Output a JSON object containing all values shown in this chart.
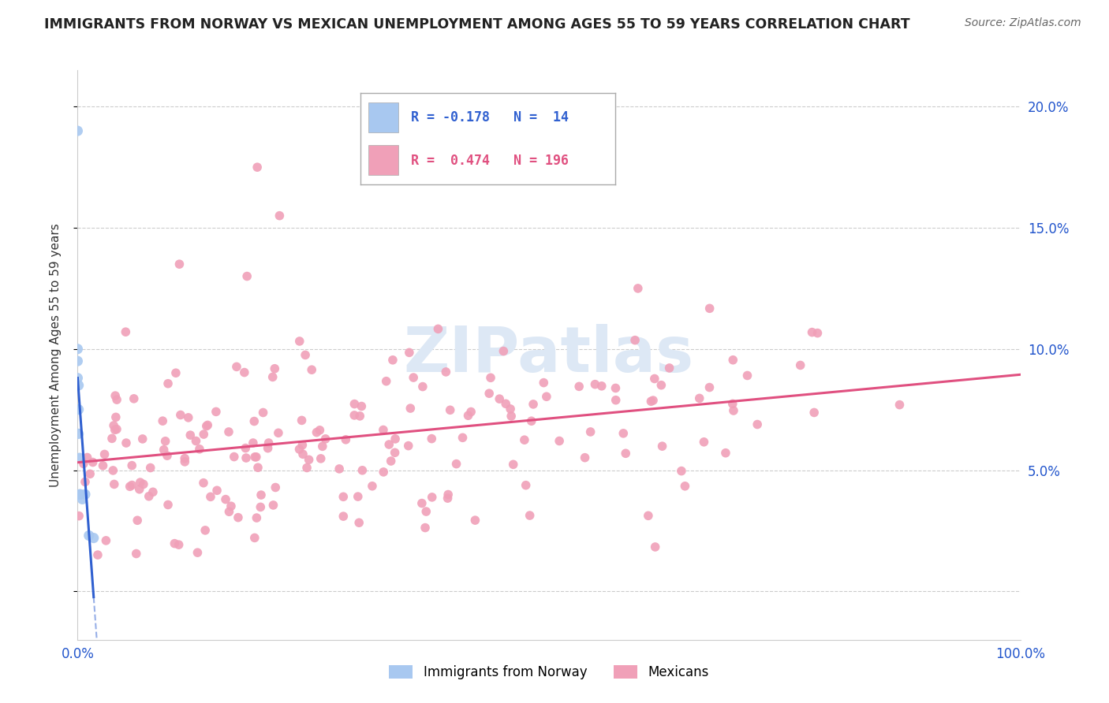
{
  "title": "IMMIGRANTS FROM NORWAY VS MEXICAN UNEMPLOYMENT AMONG AGES 55 TO 59 YEARS CORRELATION CHART",
  "source_text": "Source: ZipAtlas.com",
  "ylabel": "Unemployment Among Ages 55 to 59 years",
  "background_color": "#ffffff",
  "legend1_R": "-0.178",
  "legend1_N": "14",
  "legend2_R": "0.474",
  "legend2_N": "196",
  "norway_scatter_color": "#a8c8f0",
  "mexico_scatter_color": "#f0a0b8",
  "norway_line_color": "#3060d0",
  "mexico_line_color": "#e05080",
  "watermark_color": "#dde8f5",
  "xmin": 0.0,
  "xmax": 1.0,
  "ymin": -0.02,
  "ymax": 0.215,
  "norway_x": [
    0.0,
    0.0,
    0.0,
    0.0,
    0.001,
    0.001,
    0.001,
    0.002,
    0.002,
    0.003,
    0.005,
    0.008,
    0.012,
    0.017
  ],
  "norway_y": [
    0.19,
    0.1,
    0.095,
    0.088,
    0.085,
    0.075,
    0.065,
    0.055,
    0.04,
    0.04,
    0.038,
    0.04,
    0.023,
    0.022
  ],
  "mex_seed": 12345
}
